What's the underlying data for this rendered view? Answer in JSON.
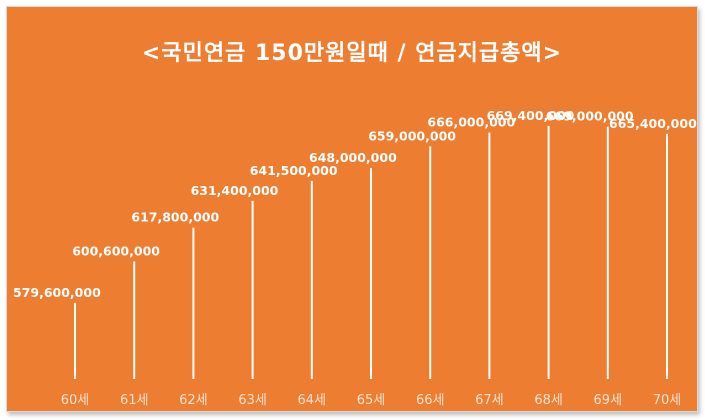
{
  "chart_data": {
    "type": "bar",
    "title": "<국민연금 150만원일때 / 연금지급총액>",
    "categories": [
      "60세",
      "61세",
      "62세",
      "63세",
      "64세",
      "65세",
      "66세",
      "67세",
      "68세",
      "69세",
      "70세"
    ],
    "values": [
      579600000,
      600600000,
      617800000,
      631400000,
      641500000,
      648000000,
      659000000,
      666000000,
      669400000,
      669000000,
      665400000
    ],
    "data_labels": [
      "579,600,000",
      "600,600,000",
      "617,800,000",
      "631,400,000",
      "641,500,000",
      "648,000,000",
      "659,000,000",
      "666,000,000",
      "669,400,000",
      "669,000,000",
      "665,400,000"
    ],
    "xlabel": "",
    "ylabel": "",
    "grid": false,
    "legend": "none",
    "colors": {
      "background": "#ed7d31",
      "bar": "#ffffff",
      "text": "#ffffff"
    }
  }
}
